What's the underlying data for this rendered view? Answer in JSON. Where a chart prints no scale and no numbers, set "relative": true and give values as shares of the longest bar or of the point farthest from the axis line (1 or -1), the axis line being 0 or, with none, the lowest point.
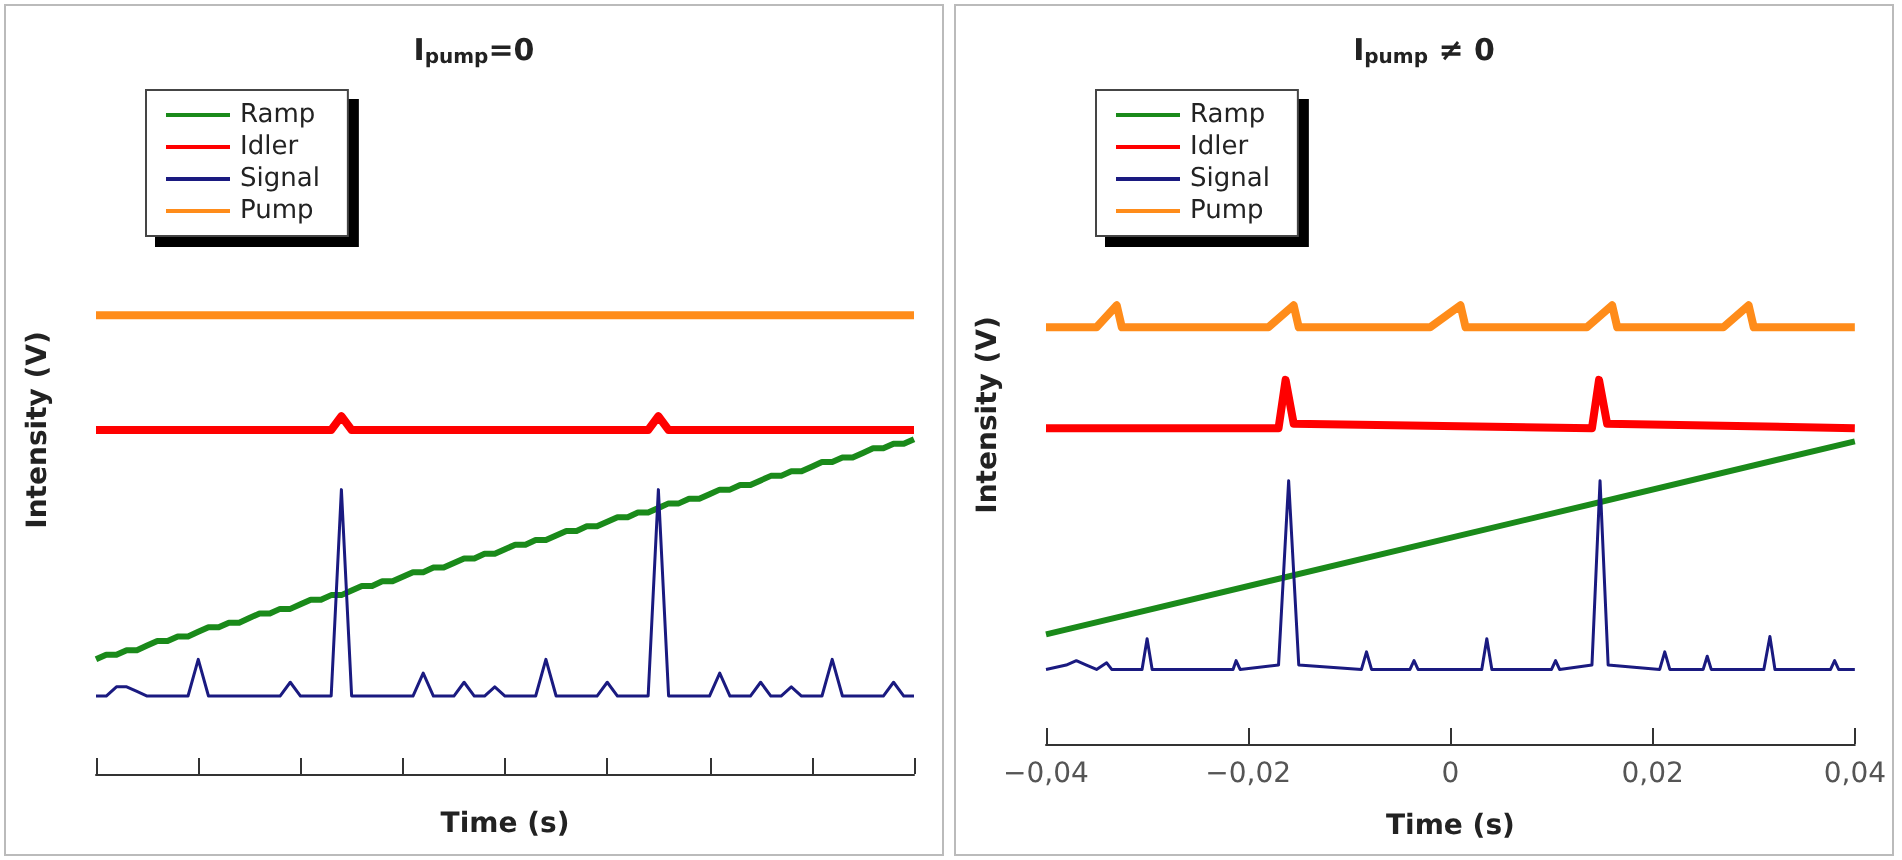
{
  "chart_data": [
    {
      "type": "line",
      "title": "I$_{pump}$=0",
      "xlabel": "Time (s)",
      "ylabel": "Intensity (V)",
      "relative": true,
      "legend": "top left",
      "marker": "none",
      "line_style": "solid",
      "tick_labels": false,
      "categories": [
        null,
        null,
        null,
        null,
        null,
        null,
        null,
        null,
        null,
        null,
        null,
        null,
        null,
        null,
        null,
        null,
        null,
        null,
        null,
        null,
        null,
        null,
        null,
        null,
        null,
        null,
        null,
        null,
        null,
        null,
        null,
        null,
        null,
        null,
        null,
        null,
        null,
        null,
        null,
        null,
        null,
        null,
        null,
        null,
        null,
        null,
        null,
        null,
        null,
        null,
        null,
        null,
        null,
        null,
        null,
        null,
        null,
        null,
        null,
        null,
        null,
        null,
        null,
        null,
        null,
        null,
        null,
        null,
        null,
        null,
        null,
        null,
        null,
        null,
        null,
        null,
        null,
        null,
        null,
        null,
        null
      ],
      "series": [
        {
          "name": "Ramp",
          "color": "#1a8a1a",
          "values": [
            0.25,
            0.26,
            0.26,
            0.27,
            0.27,
            0.28,
            0.29,
            0.29,
            0.3,
            0.3,
            0.31,
            0.32,
            0.32,
            0.33,
            0.33,
            0.34,
            0.35,
            0.35,
            0.36,
            0.36,
            0.37,
            0.38,
            0.38,
            0.39,
            0.39,
            0.4,
            0.41,
            0.41,
            0.42,
            0.42,
            0.43,
            0.44,
            0.44,
            0.45,
            0.45,
            0.46,
            0.47,
            0.47,
            0.48,
            0.48,
            0.49,
            0.5,
            0.5,
            0.51,
            0.51,
            0.52,
            0.53,
            0.53,
            0.54,
            0.54,
            0.55,
            0.56,
            0.56,
            0.57,
            0.57,
            0.58,
            0.59,
            0.59,
            0.6,
            0.6,
            0.61,
            0.62,
            0.62,
            0.63,
            0.63,
            0.64,
            0.65,
            0.65,
            0.66,
            0.66,
            0.67,
            0.68,
            0.68,
            0.69,
            0.69,
            0.7,
            0.71,
            0.71,
            0.72,
            0.72,
            0.73
          ]
        },
        {
          "name": "Idler",
          "color": "#ff0000",
          "values": [
            0.75,
            0.75,
            0.75,
            0.75,
            0.75,
            0.75,
            0.75,
            0.75,
            0.75,
            0.75,
            0.75,
            0.75,
            0.75,
            0.75,
            0.75,
            0.75,
            0.75,
            0.75,
            0.75,
            0.75,
            0.75,
            0.75,
            0.75,
            0.75,
            0.78,
            0.75,
            0.75,
            0.75,
            0.75,
            0.75,
            0.75,
            0.75,
            0.75,
            0.75,
            0.75,
            0.75,
            0.75,
            0.75,
            0.75,
            0.75,
            0.75,
            0.75,
            0.75,
            0.75,
            0.75,
            0.75,
            0.75,
            0.75,
            0.75,
            0.75,
            0.75,
            0.75,
            0.75,
            0.75,
            0.75,
            0.78,
            0.75,
            0.75,
            0.75,
            0.75,
            0.75,
            0.75,
            0.75,
            0.75,
            0.75,
            0.75,
            0.75,
            0.75,
            0.75,
            0.75,
            0.75,
            0.75,
            0.75,
            0.75,
            0.75,
            0.75,
            0.75,
            0.75,
            0.75,
            0.75,
            0.75
          ]
        },
        {
          "name": "Signal",
          "color": "#1a1a80",
          "values": [
            0.17,
            0.17,
            0.19,
            0.19,
            0.18,
            0.17,
            0.17,
            0.17,
            0.17,
            0.17,
            0.25,
            0.17,
            0.17,
            0.17,
            0.17,
            0.17,
            0.17,
            0.17,
            0.17,
            0.2,
            0.17,
            0.17,
            0.17,
            0.17,
            0.62,
            0.17,
            0.17,
            0.17,
            0.17,
            0.17,
            0.17,
            0.17,
            0.22,
            0.17,
            0.17,
            0.17,
            0.2,
            0.17,
            0.17,
            0.19,
            0.17,
            0.17,
            0.17,
            0.17,
            0.25,
            0.17,
            0.17,
            0.17,
            0.17,
            0.17,
            0.2,
            0.17,
            0.17,
            0.17,
            0.17,
            0.62,
            0.17,
            0.17,
            0.17,
            0.17,
            0.17,
            0.22,
            0.17,
            0.17,
            0.17,
            0.2,
            0.17,
            0.17,
            0.19,
            0.17,
            0.17,
            0.17,
            0.25,
            0.17,
            0.17,
            0.17,
            0.17,
            0.17,
            0.2,
            0.17,
            0.17
          ]
        },
        {
          "name": "Pump",
          "color": "#ff8c1a",
          "values": [
            1,
            1,
            1,
            1,
            1,
            1,
            1,
            1,
            1,
            1,
            1,
            1,
            1,
            1,
            1,
            1,
            1,
            1,
            1,
            1,
            1,
            1,
            1,
            1,
            1,
            1,
            1,
            1,
            1,
            1,
            1,
            1,
            1,
            1,
            1,
            1,
            1,
            1,
            1,
            1,
            1,
            1,
            1,
            1,
            1,
            1,
            1,
            1,
            1,
            1,
            1,
            1,
            1,
            1,
            1,
            1,
            1,
            1,
            1,
            1,
            1,
            1,
            1,
            1,
            1,
            1,
            1,
            1,
            1,
            1,
            1,
            1,
            1,
            1,
            1,
            1,
            1,
            1,
            1,
            1,
            1
          ]
        }
      ]
    },
    {
      "type": "line",
      "title": "I$_{pump}$ ≠ 0",
      "xlabel": "Time (s)",
      "ylabel": "Intensity (V)",
      "relative": true,
      "legend": "top left",
      "marker": "none",
      "line_style": "solid",
      "tick_labels": "x",
      "xlim": [
        -0.04,
        0.04
      ],
      "xticks": [
        {
          "value": -0.04,
          "label": "−0,04"
        },
        {
          "value": -0.02,
          "label": "−0,02"
        },
        0,
        {
          "value": 0.02,
          "label": "0,02"
        },
        {
          "value": 0.04,
          "label": "0,04"
        }
      ],
      "series": [
        {
          "name": "Ramp",
          "color": "#1a8a1a",
          "x": [
            -0.04,
            0.04
          ],
          "values": [
            0.25,
            0.69
          ]
        },
        {
          "name": "Idler",
          "color": "#ff0000",
          "x": [
            -0.04,
            -0.017,
            -0.0163,
            -0.0155,
            0.014,
            0.0147,
            0.0155,
            0.04
          ],
          "values": [
            0.72,
            0.72,
            0.83,
            0.73,
            0.72,
            0.83,
            0.73,
            0.72
          ]
        },
        {
          "name": "Signal",
          "color": "#1a1a80",
          "x": [
            -0.04,
            -0.038,
            -0.037,
            -0.036,
            -0.035,
            -0.034,
            -0.0335,
            -0.0305,
            -0.03,
            -0.0295,
            -0.0215,
            -0.0212,
            -0.0208,
            -0.017,
            -0.016,
            -0.015,
            -0.0088,
            -0.0083,
            -0.0078,
            -0.004,
            -0.0036,
            -0.0032,
            0.0031,
            0.0036,
            0.0041,
            0.01,
            0.0104,
            0.0108,
            0.014,
            0.0148,
            0.0156,
            0.0207,
            0.0212,
            0.0217,
            0.025,
            0.0254,
            0.0258,
            0.031,
            0.0316,
            0.0321,
            0.0376,
            0.038,
            0.0384,
            0.04
          ],
          "values": [
            0.17,
            0.18,
            0.19,
            0.18,
            0.17,
            0.185,
            0.17,
            0.17,
            0.24,
            0.17,
            0.17,
            0.19,
            0.17,
            0.18,
            0.6,
            0.18,
            0.17,
            0.21,
            0.17,
            0.17,
            0.19,
            0.17,
            0.17,
            0.24,
            0.17,
            0.17,
            0.19,
            0.17,
            0.18,
            0.6,
            0.18,
            0.17,
            0.21,
            0.17,
            0.17,
            0.2,
            0.17,
            0.17,
            0.245,
            0.17,
            0.17,
            0.19,
            0.17,
            0.17
          ]
        },
        {
          "name": "Pump",
          "color": "#ff8c1a",
          "x": [
            -0.04,
            -0.035,
            -0.033,
            -0.0325,
            -0.018,
            -0.0155,
            -0.015,
            -0.002,
            0.001,
            0.0015,
            0.0135,
            0.016,
            0.0165,
            0.027,
            0.0295,
            0.03,
            0.04
          ],
          "values": [
            0.95,
            0.95,
            1,
            0.95,
            0.95,
            1,
            0.95,
            0.95,
            1,
            0.95,
            0.95,
            1,
            0.95,
            0.95,
            1,
            0.95,
            0.95
          ]
        }
      ]
    }
  ]
}
